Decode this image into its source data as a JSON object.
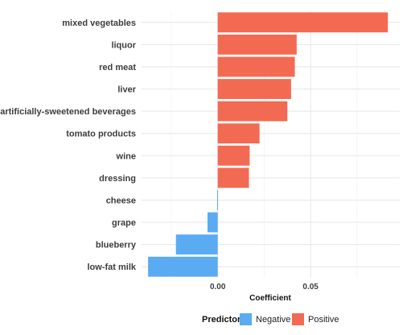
{
  "chart_data": {
    "type": "bar",
    "orientation": "horizontal",
    "categories": [
      "mixed vegetables",
      "liquor",
      "red meat",
      "liver",
      "artificially-sweetened beverages",
      "tomato products",
      "wine",
      "dressing",
      "cheese",
      "grape",
      "blueberry",
      "low-fat milk"
    ],
    "values": [
      0.0916,
      0.0425,
      0.0415,
      0.0395,
      0.0375,
      0.0225,
      0.0172,
      0.0168,
      -0.0003,
      -0.0055,
      -0.0225,
      -0.0375
    ],
    "groups": [
      "Positive",
      "Positive",
      "Positive",
      "Positive",
      "Positive",
      "Positive",
      "Positive",
      "Positive",
      "Negative",
      "Negative",
      "Negative",
      "Negative"
    ],
    "xlabel": "Coefficient",
    "xlim": [
      -0.041,
      0.098
    ],
    "xticks": [
      0.0,
      0.05
    ],
    "xtick_labels": [
      "0.00",
      "0.05"
    ],
    "grid": true,
    "legend": {
      "title": "Predictor",
      "placement": "bottom",
      "entries": [
        {
          "label": "Negative",
          "color": "#5aabf2"
        },
        {
          "label": "Positive",
          "color": "#f36a52"
        }
      ]
    }
  }
}
